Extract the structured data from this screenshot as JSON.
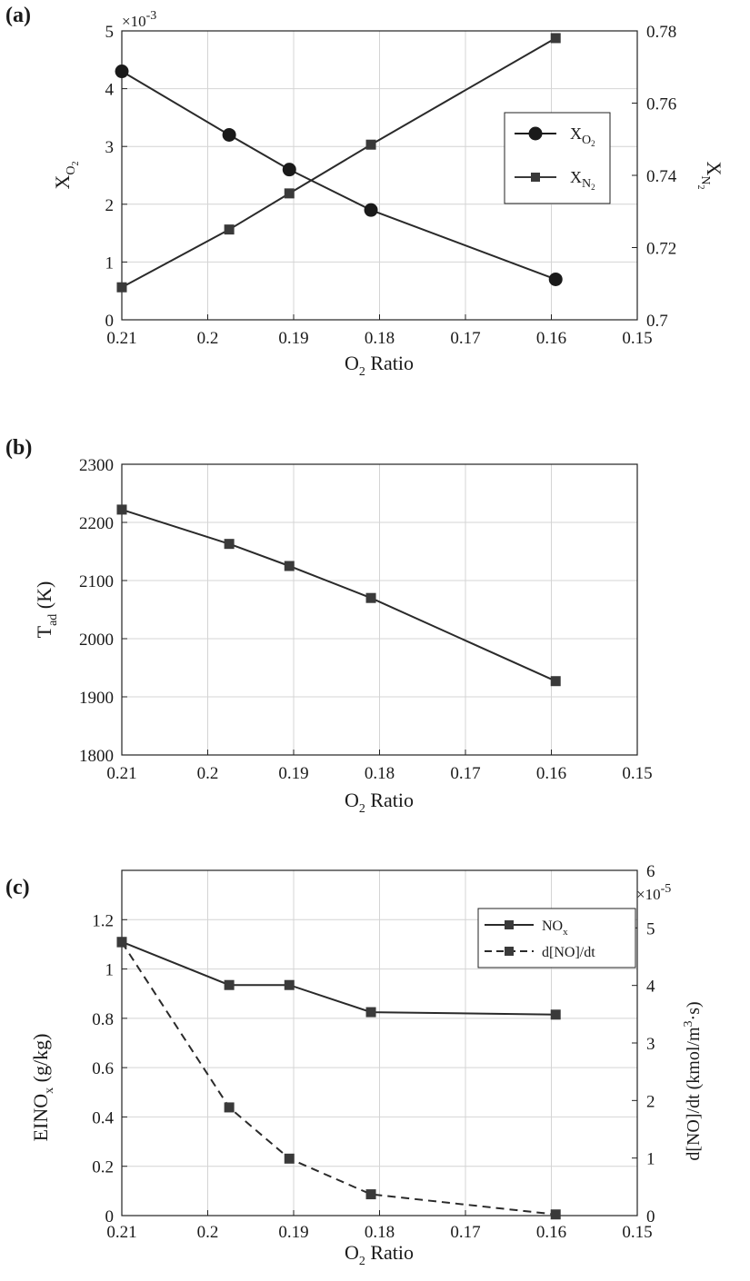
{
  "figure": {
    "panels": [
      "(a)",
      "(b)",
      "(c)"
    ]
  },
  "chart_data": [
    {
      "panel_label": "(a)",
      "type": "line",
      "xlabel_main": "O",
      "xlabel_sub": "2",
      "xlabel_rest": " Ratio",
      "xlim": [
        0.21,
        0.15
      ],
      "xticks": [
        "0.21",
        "0.2",
        "0.19",
        "0.18",
        "0.17",
        "0.16",
        "0.15"
      ],
      "xtick_values": [
        0.21,
        0.2,
        0.19,
        0.18,
        0.17,
        0.16,
        0.15
      ],
      "grid": true,
      "left_axis": {
        "label_main": "X",
        "label_sub": "O",
        "label_subsub": "2",
        "ylim": [
          0,
          5
        ],
        "ticks": [
          "0",
          "1",
          "2",
          "3",
          "4",
          "5"
        ],
        "tick_values": [
          0,
          1,
          2,
          3,
          4,
          5
        ],
        "multiplier": "×10",
        "multiplier_exp": "-3"
      },
      "right_axis": {
        "label_main": "X",
        "label_sub": "N",
        "label_subsub": "2",
        "ylim": [
          0.7,
          0.78
        ],
        "ticks": [
          "0.7",
          "0.72",
          "0.74",
          "0.76",
          "0.78"
        ],
        "tick_values": [
          0.7,
          0.72,
          0.74,
          0.76,
          0.78
        ]
      },
      "x": [
        0.21,
        0.1975,
        0.1905,
        0.181,
        0.1595
      ],
      "series": [
        {
          "name_main": "X",
          "name_sub": "O",
          "name_subsub": "2",
          "axis": "left",
          "marker": "circle",
          "style": "solid",
          "values": [
            4.3,
            3.2,
            2.6,
            1.9,
            0.7
          ]
        },
        {
          "name_main": "X",
          "name_sub": "N",
          "name_subsub": "2",
          "axis": "right",
          "marker": "square",
          "style": "solid",
          "values": [
            0.709,
            0.725,
            0.735,
            0.7485,
            0.778
          ]
        }
      ],
      "legend_position": "upper-right"
    },
    {
      "panel_label": "(b)",
      "type": "line",
      "xlabel_main": "O",
      "xlabel_sub": "2",
      "xlabel_rest": " Ratio",
      "xlim": [
        0.21,
        0.15
      ],
      "xticks": [
        "0.21",
        "0.2",
        "0.19",
        "0.18",
        "0.17",
        "0.16",
        "0.15"
      ],
      "xtick_values": [
        0.21,
        0.2,
        0.19,
        0.18,
        0.17,
        0.16,
        0.15
      ],
      "grid": true,
      "left_axis": {
        "label_main": "T",
        "label_sub": "ad",
        "label_rest": " (K)",
        "ylim": [
          1800,
          2300
        ],
        "ticks": [
          "1800",
          "1900",
          "2000",
          "2100",
          "2200",
          "2300"
        ],
        "tick_values": [
          1800,
          1900,
          2000,
          2100,
          2200,
          2300
        ]
      },
      "x": [
        0.21,
        0.1975,
        0.1905,
        0.181,
        0.1595
      ],
      "series": [
        {
          "name": "T_ad",
          "axis": "left",
          "marker": "square",
          "style": "solid",
          "values": [
            2222,
            2163,
            2125,
            2070,
            1927
          ]
        }
      ]
    },
    {
      "panel_label": "(c)",
      "type": "line",
      "xlabel_main": "O",
      "xlabel_sub": "2",
      "xlabel_rest": " Ratio",
      "xlim": [
        0.21,
        0.15
      ],
      "xticks": [
        "0.21",
        "0.2",
        "0.19",
        "0.18",
        "0.17",
        "0.16",
        "0.15"
      ],
      "xtick_values": [
        0.21,
        0.2,
        0.19,
        0.18,
        0.17,
        0.16,
        0.15
      ],
      "grid": true,
      "left_axis": {
        "label_main": "EINO",
        "label_sub": "x",
        "label_rest": " (g/kg)",
        "ylim": [
          0,
          1.4
        ],
        "ticks": [
          "0",
          "0.2",
          "0.4",
          "0.6",
          "0.8",
          "1",
          "1.2"
        ],
        "tick_values": [
          0,
          0.2,
          0.4,
          0.6,
          0.8,
          1,
          1.2
        ]
      },
      "right_axis": {
        "label_pre": "d[NO]/dt (kmol/m",
        "label_sup": "3",
        "label_dot": "·",
        "label_post": "s)",
        "ylim": [
          0,
          6
        ],
        "ticks": [
          "0",
          "1",
          "2",
          "3",
          "4",
          "5",
          "6"
        ],
        "tick_values": [
          0,
          1,
          2,
          3,
          4,
          5,
          6
        ],
        "multiplier": "×10",
        "multiplier_exp": "-5"
      },
      "x": [
        0.21,
        0.1975,
        0.1905,
        0.181,
        0.1595
      ],
      "series": [
        {
          "name_main": "NO",
          "name_sub": "x",
          "axis": "left",
          "marker": "square",
          "style": "solid",
          "values": [
            1.11,
            0.935,
            0.935,
            0.825,
            0.815
          ]
        },
        {
          "name": "d[NO]/dt",
          "axis": "right",
          "marker": "square",
          "style": "dashed",
          "values": [
            4.75,
            1.88,
            0.99,
            0.37,
            0.02
          ]
        }
      ],
      "legend_position": "upper-right"
    }
  ]
}
